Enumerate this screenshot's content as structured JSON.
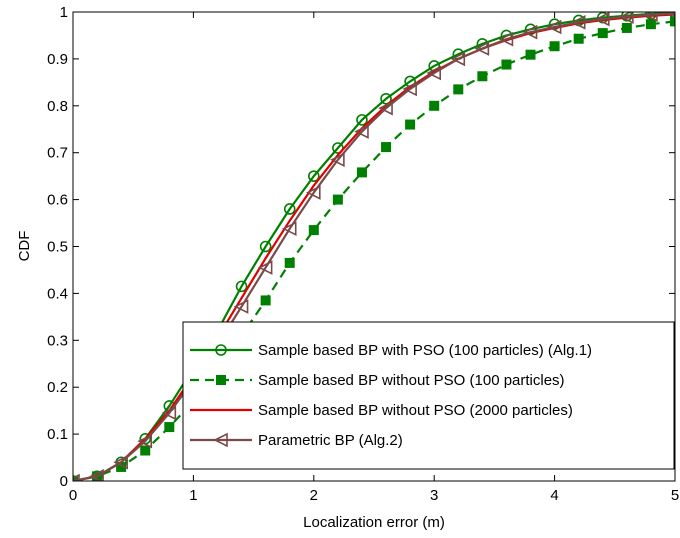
{
  "chart_data": {
    "type": "line",
    "title": "",
    "xlabel": "Localization error (m)",
    "ylabel": "CDF",
    "xlim": [
      0,
      5
    ],
    "ylim": [
      0,
      1
    ],
    "xticks": [
      "0",
      "1",
      "2",
      "3",
      "4",
      "5"
    ],
    "yticks": [
      "0",
      "0.1",
      "0.2",
      "0.3",
      "0.4",
      "0.5",
      "0.6",
      "0.7",
      "0.8",
      "0.9",
      "1"
    ],
    "grid": false,
    "legend_position": "bottom-right",
    "series": [
      {
        "name": "Sample based BP with PSO (100 particles) (Alg.1)",
        "color": "#008000",
        "line_style": "solid",
        "marker": "circle-open",
        "x": [
          0,
          0.2,
          0.4,
          0.6,
          0.8,
          1.0,
          1.2,
          1.4,
          1.6,
          1.8,
          2.0,
          2.2,
          2.4,
          2.6,
          2.8,
          3.0,
          3.2,
          3.4,
          3.6,
          3.8,
          4.0,
          4.2,
          4.4,
          4.6,
          4.8,
          5.0
        ],
        "y": [
          0,
          0.01,
          0.04,
          0.09,
          0.16,
          0.24,
          0.32,
          0.415,
          0.5,
          0.58,
          0.65,
          0.71,
          0.77,
          0.815,
          0.852,
          0.885,
          0.91,
          0.932,
          0.95,
          0.963,
          0.974,
          0.982,
          0.988,
          0.992,
          0.996,
          0.998
        ]
      },
      {
        "name": "Sample based BP without PSO (100 particles)",
        "color": "#008000",
        "line_style": "dashed",
        "marker": "square-filled",
        "x": [
          0,
          0.2,
          0.4,
          0.6,
          0.8,
          1.0,
          1.2,
          1.4,
          1.6,
          1.8,
          2.0,
          2.2,
          2.4,
          2.6,
          2.8,
          3.0,
          3.2,
          3.4,
          3.6,
          3.8,
          4.0,
          4.2,
          4.4,
          4.6,
          4.8,
          5.0
        ],
        "y": [
          0,
          0.01,
          0.03,
          0.065,
          0.115,
          0.17,
          0.235,
          0.31,
          0.385,
          0.465,
          0.535,
          0.6,
          0.658,
          0.712,
          0.76,
          0.8,
          0.835,
          0.863,
          0.888,
          0.909,
          0.927,
          0.943,
          0.955,
          0.966,
          0.974,
          0.98
        ]
      },
      {
        "name": "Sample based BP without PSO (2000 particles)",
        "color": "#e00000",
        "line_style": "solid",
        "marker": "none",
        "x": [
          0,
          0.2,
          0.4,
          0.6,
          0.8,
          1.0,
          1.2,
          1.4,
          1.6,
          1.8,
          2.0,
          2.2,
          2.4,
          2.6,
          2.8,
          3.0,
          3.2,
          3.4,
          3.6,
          3.8,
          4.0,
          4.2,
          4.4,
          4.6,
          4.8,
          5.0
        ],
        "y": [
          0,
          0.01,
          0.04,
          0.09,
          0.15,
          0.225,
          0.305,
          0.39,
          0.475,
          0.555,
          0.63,
          0.695,
          0.752,
          0.8,
          0.84,
          0.873,
          0.9,
          0.922,
          0.94,
          0.955,
          0.966,
          0.976,
          0.983,
          0.988,
          0.992,
          0.995
        ]
      },
      {
        "name": "Parametric BP (Alg.2)",
        "color": "#7a4a4a",
        "line_style": "solid",
        "marker": "triangle-left-open",
        "x": [
          0,
          0.2,
          0.4,
          0.6,
          0.8,
          1.0,
          1.2,
          1.4,
          1.6,
          1.8,
          2.0,
          2.2,
          2.4,
          2.6,
          2.8,
          3.0,
          3.2,
          3.4,
          3.6,
          3.8,
          4.0,
          4.2,
          4.4,
          4.6,
          4.8,
          5.0
        ],
        "y": [
          0,
          0.01,
          0.04,
          0.085,
          0.145,
          0.215,
          0.29,
          0.372,
          0.455,
          0.538,
          0.615,
          0.685,
          0.745,
          0.795,
          0.836,
          0.87,
          0.9,
          0.922,
          0.942,
          0.957,
          0.968,
          0.978,
          0.985,
          0.99,
          0.994,
          0.997
        ]
      }
    ]
  }
}
